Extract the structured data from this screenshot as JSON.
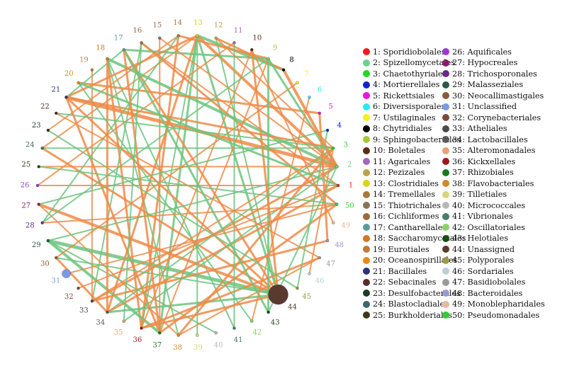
{
  "nodes": [
    {
      "id": "1",
      "label": "1",
      "name": "Sporidiobolales",
      "color": "#ee1c1c",
      "size": 2
    },
    {
      "id": "2",
      "label": "2",
      "name": "Spizellomycetales",
      "color": "#6fd08e",
      "size": 2
    },
    {
      "id": "3",
      "label": "3",
      "name": "Chaetothyriales",
      "color": "#22d622",
      "size": 2
    },
    {
      "id": "4",
      "label": "4",
      "name": "Mortierellales",
      "color": "#1022d0",
      "size": 2
    },
    {
      "id": "5",
      "label": "5",
      "name": "Rickettsiales",
      "color": "#e916dd",
      "size": 2
    },
    {
      "id": "6",
      "label": "6",
      "name": "Diversisporales",
      "color": "#2ee6ee",
      "size": 2
    },
    {
      "id": "7",
      "label": "7",
      "name": "Ustilaginales",
      "color": "#f2f21c",
      "size": 2
    },
    {
      "id": "8",
      "label": "8",
      "name": "Chytridiales",
      "color": "#000000",
      "size": 2
    },
    {
      "id": "9",
      "label": "9",
      "name": "Sphingobacteriales",
      "color": "#a6c83a",
      "size": 2
    },
    {
      "id": "10",
      "label": "10",
      "name": "Boletales",
      "color": "#5a2c14",
      "size": 2
    },
    {
      "id": "11",
      "label": "11",
      "name": "Agaricales",
      "color": "#a267b8",
      "size": 2
    },
    {
      "id": "12",
      "label": "12",
      "name": "Pezizales",
      "color": "#b8a34a",
      "size": 2
    },
    {
      "id": "13",
      "label": "13",
      "name": "Clostridiales",
      "color": "#d8d41a",
      "size": 2
    },
    {
      "id": "14",
      "label": "14",
      "name": "Tremellales",
      "color": "#a8783c",
      "size": 2
    },
    {
      "id": "15",
      "label": "15",
      "name": "Thiotrichales",
      "color": "#8a7456",
      "size": 2
    },
    {
      "id": "16",
      "label": "16",
      "name": "Cichliformes",
      "color": "#9a6a3a",
      "size": 2
    },
    {
      "id": "17",
      "label": "17",
      "name": "Cantharellales",
      "color": "#5a9a9a",
      "size": 2
    },
    {
      "id": "18",
      "label": "18",
      "name": "Saccharomycetales",
      "color": "#d2781e",
      "size": 2
    },
    {
      "id": "19",
      "label": "19",
      "name": "Eurotiales",
      "color": "#c07a3a",
      "size": 2
    },
    {
      "id": "20",
      "label": "20",
      "name": "Oceanospirillales",
      "color": "#e98a12",
      "size": 2
    },
    {
      "id": "21",
      "label": "21",
      "name": "Bacillales",
      "color": "#2c3478",
      "size": 2
    },
    {
      "id": "22",
      "label": "22",
      "name": "Sebacinales",
      "color": "#5a2c2c",
      "size": 2
    },
    {
      "id": "23",
      "label": "23",
      "name": "Desulfobacterales",
      "color": "#203a2a",
      "size": 2
    },
    {
      "id": "24",
      "label": "24",
      "name": "Blastocladiales",
      "color": "#3a6a6a",
      "size": 2
    },
    {
      "id": "25",
      "label": "25",
      "name": "Burkholderiales",
      "color": "#3a3a1a",
      "size": 2
    },
    {
      "id": "26",
      "label": "26",
      "name": "Aquificales",
      "color": "#9a3ad2",
      "size": 2
    },
    {
      "id": "27",
      "label": "27",
      "name": "Hypocreales",
      "color": "#8a1a6a",
      "size": 2
    },
    {
      "id": "28",
      "label": "28",
      "name": "Trichosporonales",
      "color": "#6a2a8a",
      "size": 2
    },
    {
      "id": "29",
      "label": "29",
      "name": "Malasseziales",
      "color": "#2a5a4a",
      "size": 2
    },
    {
      "id": "30",
      "label": "30",
      "name": "Neocallimastigales",
      "color": "#8a5a3a",
      "size": 2
    },
    {
      "id": "31",
      "label": "31",
      "name": "Unclassified",
      "color": "#7a9ae8",
      "size": 6
    },
    {
      "id": "32",
      "label": "32",
      "name": "Corynebacteriales",
      "color": "#7a4a3a",
      "size": 2
    },
    {
      "id": "33",
      "label": "33",
      "name": "Atheliales",
      "color": "#4a4a4a",
      "size": 2
    },
    {
      "id": "34",
      "label": "34",
      "name": "Lactobacillales",
      "color": "#5a5a5a",
      "size": 2
    },
    {
      "id": "35",
      "label": "35",
      "name": "Alteromonadales",
      "color": "#e8a07a",
      "size": 2
    },
    {
      "id": "36",
      "label": "36",
      "name": "Kickxellales",
      "color": "#9a1a1a",
      "size": 2
    },
    {
      "id": "37",
      "label": "37",
      "name": "Rhizobiales",
      "color": "#1a7a1a",
      "size": 2
    },
    {
      "id": "38",
      "label": "38",
      "name": "Flavobacteriales",
      "color": "#d28a2a",
      "size": 2
    },
    {
      "id": "39",
      "label": "39",
      "name": "Tilletiales",
      "color": "#d8d47a",
      "size": 2
    },
    {
      "id": "40",
      "label": "40",
      "name": "Micrococcales",
      "color": "#b8b8b8",
      "size": 2
    },
    {
      "id": "41",
      "label": "41",
      "name": "Vibrionales",
      "color": "#4a7a6a",
      "size": 2
    },
    {
      "id": "42",
      "label": "42",
      "name": "Oscillatoriales",
      "color": "#8ad26a",
      "size": 2
    },
    {
      "id": "43",
      "label": "43",
      "name": "Helotiales",
      "color": "#1a4a1a",
      "size": 2
    },
    {
      "id": "44",
      "label": "44",
      "name": "Unassigned",
      "color": "#5a3a30",
      "size": 14
    },
    {
      "id": "45",
      "label": "45",
      "name": "Polyporales",
      "color": "#9a9a4a",
      "size": 2
    },
    {
      "id": "46",
      "label": "46",
      "name": "Sordariales",
      "color": "#b8d0d8",
      "size": 2
    },
    {
      "id": "47",
      "label": "47",
      "name": "Basidiobolales",
      "color": "#9a9a9a",
      "size": 2
    },
    {
      "id": "48",
      "label": "48",
      "name": "Bacteroidales",
      "color": "#9a9ad2",
      "size": 2
    },
    {
      "id": "49",
      "label": "49",
      "name": "Monoblepharidales",
      "color": "#e8b89a",
      "size": 2
    },
    {
      "id": "50",
      "label": "50",
      "name": "Pseudomonadales",
      "color": "#3ac83a",
      "size": 2
    }
  ],
  "edges": [
    {
      "s": "13",
      "t": "8",
      "c": "green",
      "w": 4
    },
    {
      "s": "13",
      "t": "2",
      "c": "orange",
      "w": 4
    },
    {
      "s": "13",
      "t": "34",
      "c": "orange",
      "w": 3
    },
    {
      "s": "13",
      "t": "36",
      "c": "green",
      "w": 2
    },
    {
      "s": "13",
      "t": "37",
      "c": "green",
      "w": 3
    },
    {
      "s": "13",
      "t": "44",
      "c": "green",
      "w": 3
    },
    {
      "s": "13",
      "t": "24",
      "c": "orange",
      "w": 2
    },
    {
      "s": "14",
      "t": "9",
      "c": "orange",
      "w": 3
    },
    {
      "s": "14",
      "t": "36",
      "c": "orange",
      "w": 3
    },
    {
      "s": "12",
      "t": "8",
      "c": "orange",
      "w": 3
    },
    {
      "s": "12",
      "t": "44",
      "c": "green",
      "w": 2
    },
    {
      "s": "16",
      "t": "50",
      "c": "orange",
      "w": 3
    },
    {
      "s": "16",
      "t": "33",
      "c": "green",
      "w": 2
    },
    {
      "s": "16",
      "t": "1",
      "c": "orange",
      "w": 2
    },
    {
      "s": "15",
      "t": "37",
      "c": "orange",
      "w": 2
    },
    {
      "s": "17",
      "t": "9",
      "c": "green",
      "w": 3
    },
    {
      "s": "17",
      "t": "44",
      "c": "orange",
      "w": 3
    },
    {
      "s": "18",
      "t": "36",
      "c": "orange",
      "w": 3
    },
    {
      "s": "18",
      "t": "38",
      "c": "green",
      "w": 2
    },
    {
      "s": "18",
      "t": "41",
      "c": "green",
      "w": 2
    },
    {
      "s": "18",
      "t": "2",
      "c": "green",
      "w": 4
    },
    {
      "s": "19",
      "t": "33",
      "c": "orange",
      "w": 2
    },
    {
      "s": "20",
      "t": "5",
      "c": "orange",
      "w": 3
    },
    {
      "s": "20",
      "t": "42",
      "c": "green",
      "w": 2
    },
    {
      "s": "21",
      "t": "2",
      "c": "orange",
      "w": 5
    },
    {
      "s": "21",
      "t": "44",
      "c": "orange",
      "w": 3
    },
    {
      "s": "21",
      "t": "37",
      "c": "orange",
      "w": 3
    },
    {
      "s": "21",
      "t": "3",
      "c": "orange",
      "w": 3
    },
    {
      "s": "21",
      "t": "13",
      "c": "orange",
      "w": 3
    },
    {
      "s": "22",
      "t": "47",
      "c": "orange",
      "w": 2
    },
    {
      "s": "23",
      "t": "14",
      "c": "orange",
      "w": 2
    },
    {
      "s": "24",
      "t": "3",
      "c": "green",
      "w": 2
    },
    {
      "s": "24",
      "t": "44",
      "c": "orange",
      "w": 3
    },
    {
      "s": "25",
      "t": "2",
      "c": "orange",
      "w": 2
    },
    {
      "s": "26",
      "t": "1",
      "c": "orange",
      "w": 2
    },
    {
      "s": "27",
      "t": "44",
      "c": "orange",
      "w": 4
    },
    {
      "s": "27",
      "t": "4",
      "c": "green",
      "w": 2
    },
    {
      "s": "27",
      "t": "38",
      "c": "orange",
      "w": 2
    },
    {
      "s": "28",
      "t": "50",
      "c": "orange",
      "w": 2
    },
    {
      "s": "28",
      "t": "14",
      "c": "green",
      "w": 2
    },
    {
      "s": "29",
      "t": "44",
      "c": "green",
      "w": 5
    },
    {
      "s": "29",
      "t": "37",
      "c": "green",
      "w": 4
    },
    {
      "s": "29",
      "t": "2",
      "c": "green",
      "w": 2
    },
    {
      "s": "29",
      "t": "40",
      "c": "green",
      "w": 2
    },
    {
      "s": "30",
      "t": "7",
      "c": "orange",
      "w": 2
    },
    {
      "s": "30",
      "t": "34",
      "c": "orange",
      "w": 3
    },
    {
      "s": "33",
      "t": "2",
      "c": "orange",
      "w": 3
    },
    {
      "s": "33",
      "t": "48",
      "c": "orange",
      "w": 3
    },
    {
      "s": "34",
      "t": "44",
      "c": "green",
      "w": 3
    },
    {
      "s": "34",
      "t": "3",
      "c": "green",
      "w": 2
    },
    {
      "s": "34",
      "t": "1",
      "c": "orange",
      "w": 3
    },
    {
      "s": "35",
      "t": "2",
      "c": "green",
      "w": 2
    },
    {
      "s": "36",
      "t": "47",
      "c": "orange",
      "w": 3
    },
    {
      "s": "36",
      "t": "10",
      "c": "orange",
      "w": 2
    },
    {
      "s": "37",
      "t": "50",
      "c": "orange",
      "w": 3
    },
    {
      "s": "37",
      "t": "9",
      "c": "orange",
      "w": 2
    },
    {
      "s": "38",
      "t": "3",
      "c": "orange",
      "w": 3
    },
    {
      "s": "38",
      "t": "47",
      "c": "orange",
      "w": 2
    },
    {
      "s": "39",
      "t": "13",
      "c": "green",
      "w": 2
    },
    {
      "s": "41",
      "t": "11",
      "c": "green",
      "w": 2
    },
    {
      "s": "43",
      "t": "9",
      "c": "green",
      "w": 3
    },
    {
      "s": "43",
      "t": "17",
      "c": "green",
      "w": 3
    },
    {
      "s": "45",
      "t": "4",
      "c": "green",
      "w": 2
    },
    {
      "s": "10",
      "t": "49",
      "c": "orange",
      "w": 2
    },
    {
      "s": "10",
      "t": "44",
      "c": "orange",
      "w": 3
    },
    {
      "s": "9",
      "t": "2",
      "c": "green",
      "w": 3
    },
    {
      "s": "8",
      "t": "2",
      "c": "orange",
      "w": 4
    },
    {
      "s": "6",
      "t": "42",
      "c": "orange",
      "w": 2
    },
    {
      "s": "5",
      "t": "48",
      "c": "orange",
      "w": 3
    },
    {
      "s": "3",
      "t": "46",
      "c": "orange",
      "w": 2
    },
    {
      "s": "1",
      "t": "32",
      "c": "orange",
      "w": 2
    },
    {
      "s": "2",
      "t": "43",
      "c": "green",
      "w": 2
    },
    {
      "s": "50",
      "t": "31",
      "c": "orange",
      "w": 2
    },
    {
      "s": "20",
      "t": "1",
      "c": "green",
      "w": 3
    },
    {
      "s": "21",
      "t": "17",
      "c": "green",
      "w": 2
    },
    {
      "s": "23",
      "t": "45",
      "c": "green",
      "w": 2
    },
    {
      "s": "25",
      "t": "50",
      "c": "green",
      "w": 2
    },
    {
      "s": "26",
      "t": "11",
      "c": "orange",
      "w": 2
    },
    {
      "s": "18",
      "t": "34",
      "c": "orange",
      "w": 3
    },
    {
      "s": "15",
      "t": "2",
      "c": "orange",
      "w": 2
    },
    {
      "s": "12",
      "t": "3",
      "c": "orange",
      "w": 2
    },
    {
      "s": "22",
      "t": "3",
      "c": "green",
      "w": 2
    },
    {
      "s": "30",
      "t": "44",
      "c": "green",
      "w": 2
    },
    {
      "s": "36",
      "t": "44",
      "c": "orange",
      "w": 3
    },
    {
      "s": "33",
      "t": "3",
      "c": "orange",
      "w": 2
    },
    {
      "s": "17",
      "t": "37",
      "c": "orange",
      "w": 3
    },
    {
      "s": "28",
      "t": "9",
      "c": "green",
      "w": 2
    },
    {
      "s": "35",
      "t": "16",
      "c": "green",
      "w": 2
    }
  ],
  "edge_colors": {
    "green": "#6cc47e",
    "orange": "#f08a47"
  }
}
